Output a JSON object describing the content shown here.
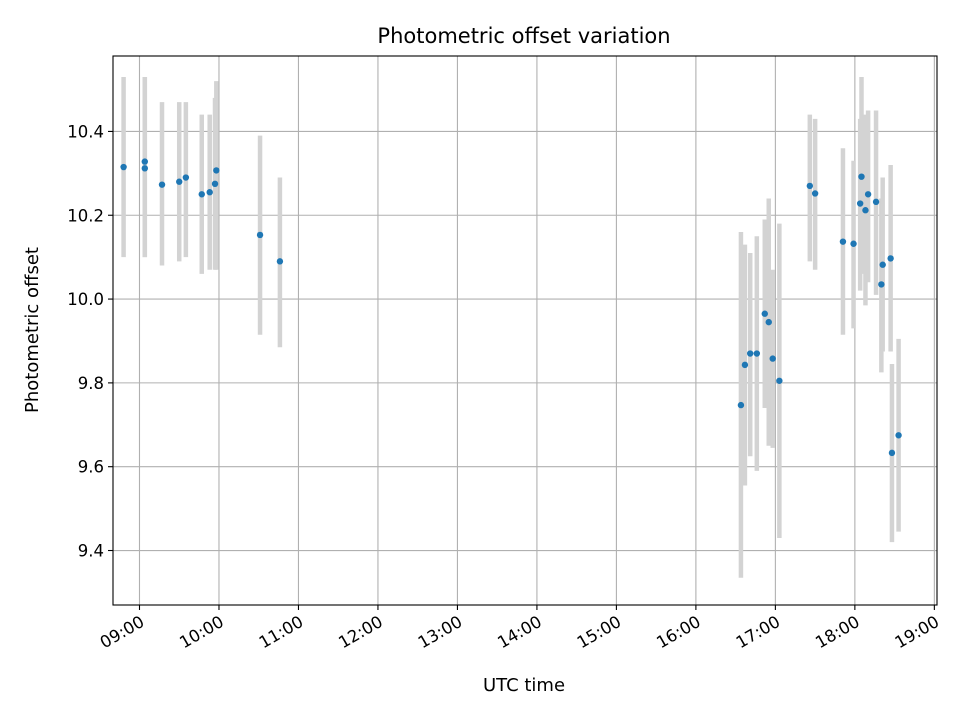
{
  "chart_data": {
    "type": "scatter",
    "title": "Photometric offset variation",
    "xlabel": "UTC time",
    "ylabel": "Photometric offset",
    "xlim": [
      "08:40",
      "19:02"
    ],
    "ylim": [
      9.27,
      10.58
    ],
    "x_ticks": [
      "09:00",
      "10:00",
      "11:00",
      "12:00",
      "13:00",
      "14:00",
      "15:00",
      "16:00",
      "17:00",
      "18:00",
      "19:00"
    ],
    "y_ticks": [
      "9.4",
      "9.6",
      "9.8",
      "10.0",
      "10.2",
      "10.4"
    ],
    "grid": true,
    "colors": {
      "point": "#1f77b4",
      "errorbar": "#d3d3d3",
      "grid": "#b0b0b0"
    },
    "points": [
      {
        "x": "08:48",
        "y": 10.315,
        "lo": 10.1,
        "hi": 10.53
      },
      {
        "x": "09:04",
        "y": 10.328,
        "lo": 10.1,
        "hi": 10.53
      },
      {
        "x": "09:04",
        "y": 10.312,
        "lo": 10.1,
        "hi": 10.53
      },
      {
        "x": "09:17",
        "y": 10.273,
        "lo": 10.08,
        "hi": 10.47
      },
      {
        "x": "09:30",
        "y": 10.28,
        "lo": 10.09,
        "hi": 10.47
      },
      {
        "x": "09:35",
        "y": 10.29,
        "lo": 10.1,
        "hi": 10.47
      },
      {
        "x": "09:47",
        "y": 10.25,
        "lo": 10.06,
        "hi": 10.44
      },
      {
        "x": "09:53",
        "y": 10.255,
        "lo": 10.07,
        "hi": 10.44
      },
      {
        "x": "09:57",
        "y": 10.275,
        "lo": 10.07,
        "hi": 10.48
      },
      {
        "x": "09:58",
        "y": 10.307,
        "lo": 10.07,
        "hi": 10.52
      },
      {
        "x": "10:31",
        "y": 10.153,
        "lo": 9.915,
        "hi": 10.39
      },
      {
        "x": "10:46",
        "y": 10.09,
        "lo": 9.885,
        "hi": 10.29
      },
      {
        "x": "16:34",
        "y": 9.747,
        "lo": 9.335,
        "hi": 10.16
      },
      {
        "x": "16:37",
        "y": 9.843,
        "lo": 9.555,
        "hi": 10.13
      },
      {
        "x": "16:41",
        "y": 9.87,
        "lo": 9.625,
        "hi": 10.11
      },
      {
        "x": "16:46",
        "y": 9.87,
        "lo": 9.59,
        "hi": 10.15
      },
      {
        "x": "16:52",
        "y": 9.965,
        "lo": 9.74,
        "hi": 10.19
      },
      {
        "x": "16:55",
        "y": 9.945,
        "lo": 9.65,
        "hi": 10.24
      },
      {
        "x": "16:58",
        "y": 9.858,
        "lo": 9.645,
        "hi": 10.07
      },
      {
        "x": "17:03",
        "y": 9.805,
        "lo": 9.43,
        "hi": 10.18
      },
      {
        "x": "17:26",
        "y": 10.27,
        "lo": 10.09,
        "hi": 10.44
      },
      {
        "x": "17:30",
        "y": 10.252,
        "lo": 10.07,
        "hi": 10.43
      },
      {
        "x": "17:51",
        "y": 10.137,
        "lo": 9.915,
        "hi": 10.36
      },
      {
        "x": "17:59",
        "y": 10.132,
        "lo": 9.93,
        "hi": 10.33
      },
      {
        "x": "18:04",
        "y": 10.228,
        "lo": 10.02,
        "hi": 10.43
      },
      {
        "x": "18:05",
        "y": 10.292,
        "lo": 10.06,
        "hi": 10.53
      },
      {
        "x": "18:08",
        "y": 10.212,
        "lo": 9.985,
        "hi": 10.44
      },
      {
        "x": "18:10",
        "y": 10.25,
        "lo": 10.04,
        "hi": 10.45
      },
      {
        "x": "18:16",
        "y": 10.232,
        "lo": 10.01,
        "hi": 10.45
      },
      {
        "x": "18:20",
        "y": 10.035,
        "lo": 9.825,
        "hi": 10.24
      },
      {
        "x": "18:21",
        "y": 10.082,
        "lo": 9.875,
        "hi": 10.29
      },
      {
        "x": "18:27",
        "y": 10.097,
        "lo": 9.875,
        "hi": 10.32
      },
      {
        "x": "18:28",
        "y": 9.633,
        "lo": 9.42,
        "hi": 9.845
      },
      {
        "x": "18:33",
        "y": 9.675,
        "lo": 9.445,
        "hi": 9.905
      }
    ]
  }
}
